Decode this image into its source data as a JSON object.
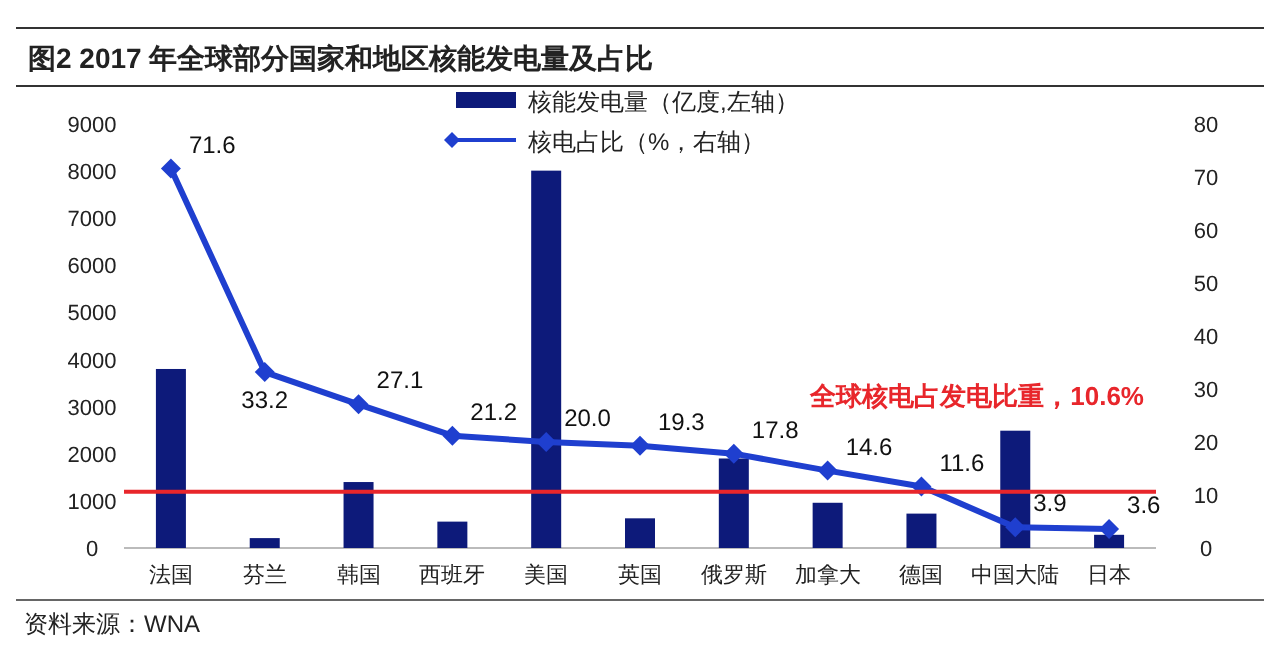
{
  "chart_data": {
    "type": "bar",
    "title": "图2  2017 年全球部分国家和地区核能发电量及占比",
    "categories": [
      "法国",
      "芬兰",
      "韩国",
      "西班牙",
      "美国",
      "英国",
      "俄罗斯",
      "加拿大",
      "德国",
      "中国大陆",
      "日本"
    ],
    "series": [
      {
        "name": "核能发电量（亿度,左轴）",
        "color": "#0d1a7a",
        "values": [
          3800,
          210,
          1400,
          560,
          8010,
          630,
          1900,
          960,
          730,
          2490,
          280
        ]
      },
      {
        "name": "核电占比（%，右轴）",
        "color": "#1f3fcf",
        "type": "line",
        "axis": "y2",
        "marker": "diamond",
        "values": [
          71.6,
          33.2,
          27.1,
          21.2,
          20.0,
          19.3,
          17.8,
          14.6,
          11.6,
          3.9,
          3.6
        ],
        "value_labels": [
          "71.6",
          "33.2",
          "27.1",
          "21.2",
          "20.0",
          "19.3",
          "17.8",
          "14.6",
          "11.6",
          "3.9",
          "3.6"
        ]
      }
    ],
    "ylim": [
      0,
      9000
    ],
    "yticks": [
      0,
      1000,
      2000,
      3000,
      4000,
      5000,
      6000,
      7000,
      8000,
      9000
    ],
    "y2lim": [
      0,
      80
    ],
    "y2ticks": [
      0,
      10,
      20,
      30,
      40,
      50,
      60,
      70,
      80
    ],
    "ref_lines": [
      {
        "axis": "y2",
        "value": 10.6,
        "label": "全球核电占发电比重，10.6%",
        "color": "#e8262b"
      }
    ],
    "annotations": [
      "资料来源：WNA"
    ],
    "legend": "top",
    "grid": false
  }
}
